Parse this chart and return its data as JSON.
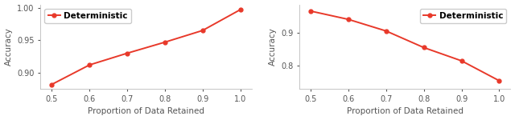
{
  "left": {
    "x": [
      0.5,
      0.6,
      0.7,
      0.8,
      0.9,
      1.0
    ],
    "y": [
      0.882,
      0.912,
      0.93,
      0.947,
      0.965,
      0.997
    ],
    "ylabel": "Accuracy",
    "xlabel": "Proportion of Data Retained",
    "ylim": [
      0.875,
      1.005
    ],
    "yticks": [
      0.9,
      0.95,
      1.0
    ],
    "legend_loc": "upper left",
    "legend_label": "Deterministic"
  },
  "right": {
    "x": [
      0.5,
      0.6,
      0.7,
      0.8,
      0.9,
      1.0
    ],
    "y": [
      0.965,
      0.94,
      0.905,
      0.855,
      0.815,
      0.755
    ],
    "ylabel": "Accuracy",
    "xlabel": "Proportion of Data Retained",
    "ylim": [
      0.73,
      0.985
    ],
    "yticks": [
      0.8,
      0.9
    ],
    "legend_loc": "upper right",
    "legend_label": "Deterministic"
  },
  "line_color": "#e8392a",
  "marker": "o",
  "markersize": 3.5,
  "linewidth": 1.4,
  "label_fontsize": 7.5,
  "tick_fontsize": 7.0,
  "legend_fontsize": 7.5,
  "spine_color": "#bbbbbb",
  "text_color": "#555555"
}
